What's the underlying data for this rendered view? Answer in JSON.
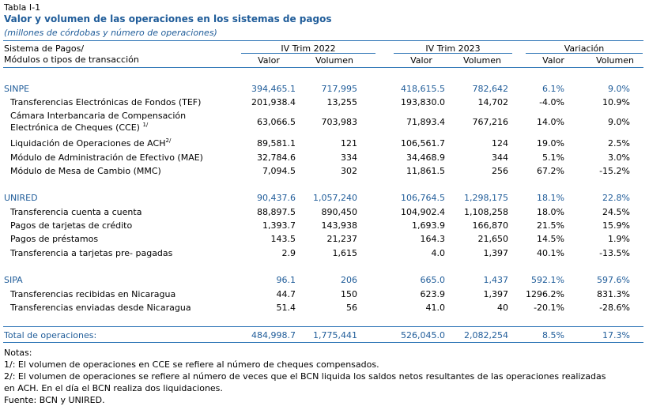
{
  "table_id": "Tabla I-1",
  "title": "Valor y volumen de las operaciones en los sistemas de pagos",
  "subtitle": "(millones de córdobas y número de operaciones)",
  "header": {
    "col_label_1": "Sistema de Pagos/",
    "col_label_2": "Módulos o tipos de transacción",
    "group_2022": "IV Trim 2022",
    "group_2023": "IV Trim 2023",
    "group_var": "Variación",
    "valor": "Valor",
    "volumen": "Volumen"
  },
  "rows": [
    {
      "label": "SINPE",
      "kind": "section",
      "v22": "394,465.1",
      "vol22": "717,995",
      "v23": "418,615.5",
      "vol23": "782,642",
      "var_v": "6.1%",
      "var_vol": "9.0%"
    },
    {
      "label": "Transferencias Electrónicas de Fondos (TEF)",
      "kind": "item",
      "v22": "201,938.4",
      "vol22": "13,255",
      "v23": "193,830.0",
      "vol23": "14,702",
      "var_v": "-4.0%",
      "var_vol": "10.9%"
    },
    {
      "label": "Cámara Interbancaria de Compensación",
      "label2": "Electrónica de Cheques (CCE)",
      "sup": "1/",
      "kind": "item2",
      "v22": "63,066.5",
      "vol22": "703,983",
      "v23": "71,893.4",
      "vol23": "767,216",
      "var_v": "14.0%",
      "var_vol": "9.0%"
    },
    {
      "label": "Liquidación de Operaciones de ACH",
      "sup": "2/",
      "kind": "item",
      "v22": "89,581.1",
      "vol22": "121",
      "v23": "106,561.7",
      "vol23": "124",
      "var_v": "19.0%",
      "var_vol": "2.5%"
    },
    {
      "label": "Módulo de Administración de Efectivo (MAE)",
      "kind": "item",
      "v22": "32,784.6",
      "vol22": "334",
      "v23": "34,468.9",
      "vol23": "344",
      "var_v": "5.1%",
      "var_vol": "3.0%"
    },
    {
      "label": "Módulo de Mesa de Cambio (MMC)",
      "kind": "item",
      "v22": "7,094.5",
      "vol22": "302",
      "v23": "11,861.5",
      "vol23": "256",
      "var_v": "67.2%",
      "var_vol": "-15.2%"
    },
    {
      "label": "UNIRED",
      "kind": "section",
      "v22": "90,437.6",
      "vol22": "1,057,240",
      "v23": "106,764.5",
      "vol23": "1,298,175",
      "var_v": "18.1%",
      "var_vol": "22.8%"
    },
    {
      "label": "Transferencia cuenta a cuenta",
      "kind": "item",
      "v22": "88,897.5",
      "vol22": "890,450",
      "v23": "104,902.4",
      "vol23": "1,108,258",
      "var_v": "18.0%",
      "var_vol": "24.5%"
    },
    {
      "label": "Pagos de tarjetas de crédito",
      "kind": "item",
      "v22": "1,393.7",
      "vol22": "143,938",
      "v23": "1,693.9",
      "vol23": "166,870",
      "var_v": "21.5%",
      "var_vol": "15.9%"
    },
    {
      "label": "Pagos de préstamos",
      "kind": "item",
      "v22": "143.5",
      "vol22": "21,237",
      "v23": "164.3",
      "vol23": "21,650",
      "var_v": "14.5%",
      "var_vol": "1.9%"
    },
    {
      "label": "Transferencia a tarjetas pre- pagadas",
      "kind": "item",
      "v22": "2.9",
      "vol22": "1,615",
      "v23": "4.0",
      "vol23": "1,397",
      "var_v": "40.1%",
      "var_vol": "-13.5%"
    },
    {
      "label": "SIPA",
      "kind": "section",
      "v22": "96.1",
      "vol22": "206",
      "v23": "665.0",
      "vol23": "1,437",
      "var_v": "592.1%",
      "var_vol": "597.6%"
    },
    {
      "label": "Transferencias recibidas en Nicaragua",
      "kind": "item",
      "v22": "44.7",
      "vol22": "150",
      "v23": "623.9",
      "vol23": "1,397",
      "var_v": "1296.2%",
      "var_vol": "831.3%"
    },
    {
      "label": "Transferencias enviadas desde Nicaragua",
      "kind": "item",
      "v22": "51.4",
      "vol22": "56",
      "v23": "41.0",
      "vol23": "40",
      "var_v": "-20.1%",
      "var_vol": "-28.6%"
    },
    {
      "label": "Total de operaciones:",
      "kind": "total",
      "v22": "484,998.7",
      "vol22": "1,775,441",
      "v23": "526,045.0",
      "vol23": "2,082,254",
      "var_v": "8.5%",
      "var_vol": "17.3%"
    }
  ],
  "notes": {
    "heading": "Notas:",
    "n1": "1/: El volumen de operaciones en CCE se refiere al número de cheques compensados.",
    "n2a": "2/: El volumen de operaciones se refiere al número de veces que el BCN liquida los saldos netos resultantes de las operaciones realizadas",
    "n2b": "en ACH. En el día el BCN realiza dos liquidaciones.",
    "source": "Fuente: BCN y UNIRED."
  }
}
